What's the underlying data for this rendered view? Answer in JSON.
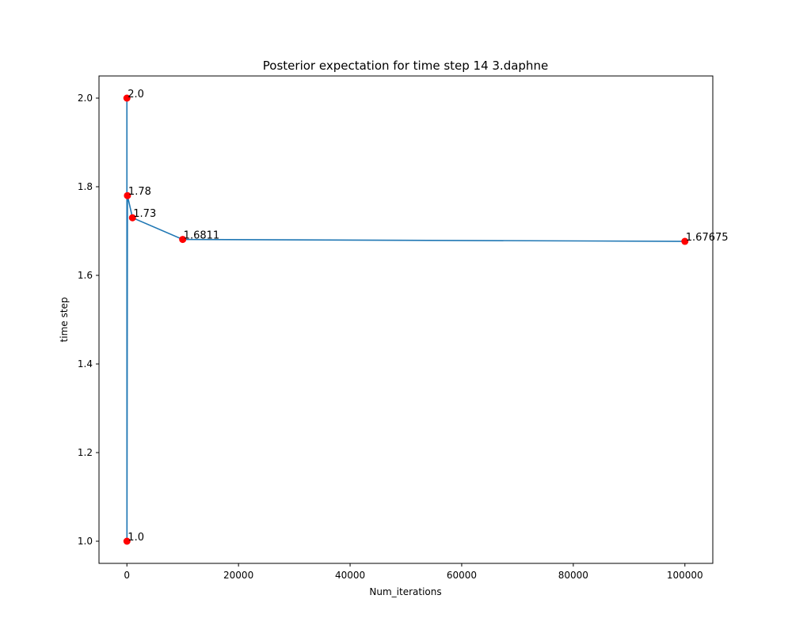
{
  "chart_data": {
    "type": "line",
    "title": "Posterior expectation for time step 14 3.daphne",
    "xlabel": "Num_iterations",
    "ylabel": "time step",
    "xlim": [
      -5000,
      105000
    ],
    "ylim": [
      0.95,
      2.05
    ],
    "xticks": [
      0,
      20000,
      40000,
      60000,
      80000,
      100000
    ],
    "xtick_labels": [
      "0",
      "20000",
      "40000",
      "60000",
      "80000",
      "100000"
    ],
    "yticks": [
      1.0,
      1.2,
      1.4,
      1.6,
      1.8,
      2.0
    ],
    "ytick_labels": [
      "1.0",
      "1.2",
      "1.4",
      "1.6",
      "1.8",
      "2.0"
    ],
    "grid": false,
    "series": [
      {
        "x": [
          1,
          10,
          100,
          1000,
          10000,
          100000
        ],
        "y": [
          2.0,
          1.0,
          1.78,
          1.73,
          1.6811,
          1.67675
        ],
        "labels": [
          "2.0",
          "1.0",
          "1.78",
          "1.73",
          "1.6811",
          "1.67675"
        ],
        "line_color": "#1f77b4",
        "marker_color": "#ff0000"
      }
    ]
  }
}
